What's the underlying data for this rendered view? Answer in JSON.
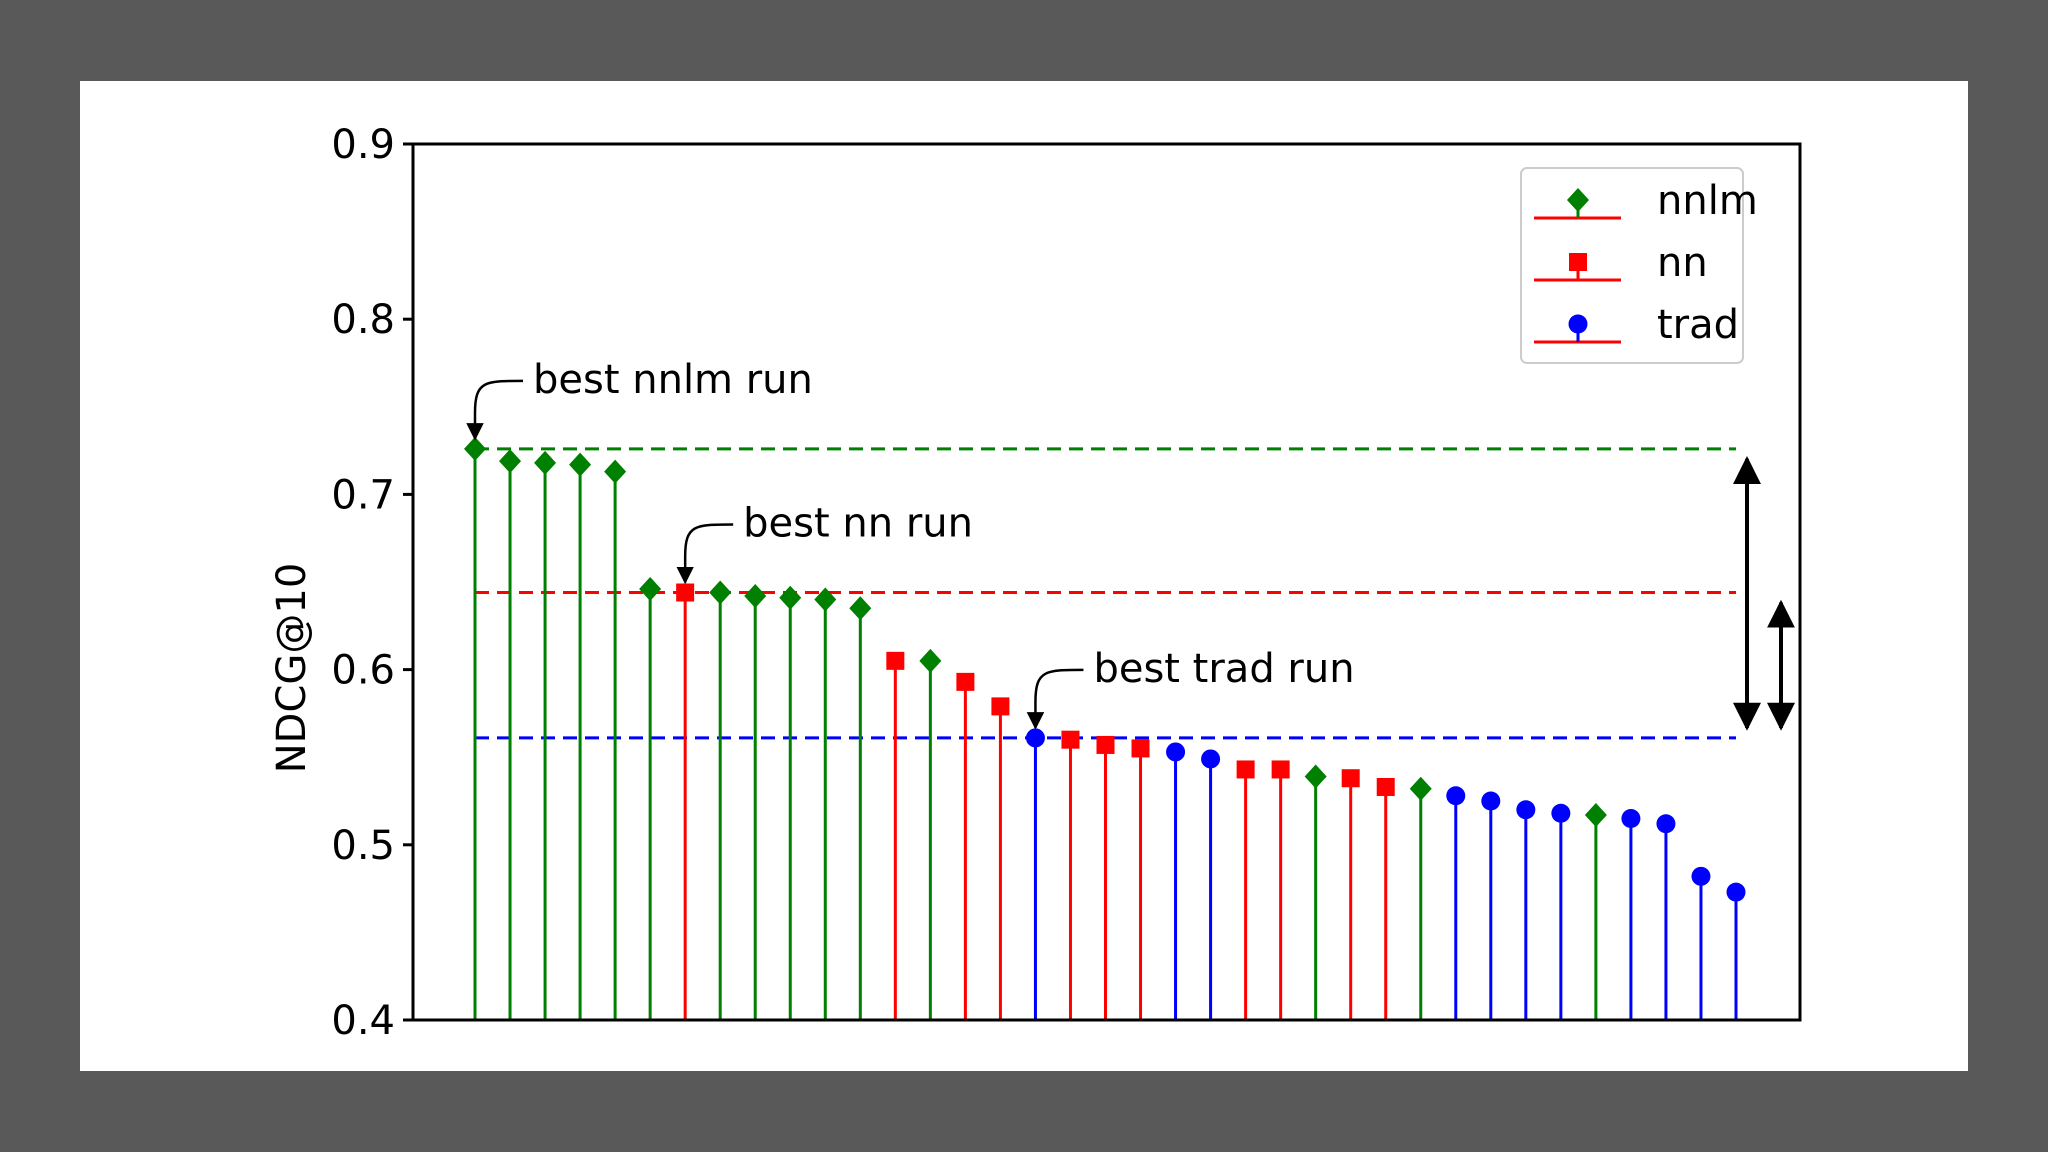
{
  "chart_data": {
    "type": "stem",
    "title": "",
    "xlabel": "",
    "ylabel": "NDCG@10",
    "ylim": [
      0.4,
      0.9
    ],
    "yticks": [
      "0.4",
      "0.5",
      "0.6",
      "0.7",
      "0.8",
      "0.9"
    ],
    "grid": false,
    "legend_position": "top-right",
    "series_styles": {
      "nnlm": {
        "color": "#008000",
        "marker": "diamond"
      },
      "nn": {
        "color": "#ff0000",
        "marker": "square"
      },
      "trad": {
        "color": "#0000ff",
        "marker": "circle"
      }
    },
    "legend": [
      "nnlm",
      "nn",
      "trad"
    ],
    "points": [
      {
        "rank": 1,
        "series": "nnlm",
        "value": 0.726
      },
      {
        "rank": 2,
        "series": "nnlm",
        "value": 0.719
      },
      {
        "rank": 3,
        "series": "nnlm",
        "value": 0.718
      },
      {
        "rank": 4,
        "series": "nnlm",
        "value": 0.717
      },
      {
        "rank": 5,
        "series": "nnlm",
        "value": 0.713
      },
      {
        "rank": 6,
        "series": "nnlm",
        "value": 0.646
      },
      {
        "rank": 7,
        "series": "nn",
        "value": 0.644
      },
      {
        "rank": 8,
        "series": "nnlm",
        "value": 0.644
      },
      {
        "rank": 9,
        "series": "nnlm",
        "value": 0.642
      },
      {
        "rank": 10,
        "series": "nnlm",
        "value": 0.641
      },
      {
        "rank": 11,
        "series": "nnlm",
        "value": 0.64
      },
      {
        "rank": 12,
        "series": "nnlm",
        "value": 0.635
      },
      {
        "rank": 13,
        "series": "nn",
        "value": 0.605
      },
      {
        "rank": 14,
        "series": "nnlm",
        "value": 0.605
      },
      {
        "rank": 15,
        "series": "nn",
        "value": 0.593
      },
      {
        "rank": 16,
        "series": "nn",
        "value": 0.579
      },
      {
        "rank": 17,
        "series": "trad",
        "value": 0.561
      },
      {
        "rank": 18,
        "series": "nn",
        "value": 0.56
      },
      {
        "rank": 19,
        "series": "nn",
        "value": 0.557
      },
      {
        "rank": 20,
        "series": "nn",
        "value": 0.555
      },
      {
        "rank": 21,
        "series": "trad",
        "value": 0.553
      },
      {
        "rank": 22,
        "series": "trad",
        "value": 0.549
      },
      {
        "rank": 23,
        "series": "nn",
        "value": 0.543
      },
      {
        "rank": 24,
        "series": "nn",
        "value": 0.543
      },
      {
        "rank": 25,
        "series": "nnlm",
        "value": 0.539
      },
      {
        "rank": 26,
        "series": "nn",
        "value": 0.538
      },
      {
        "rank": 27,
        "series": "nn",
        "value": 0.533
      },
      {
        "rank": 28,
        "series": "nnlm",
        "value": 0.532
      },
      {
        "rank": 29,
        "series": "trad",
        "value": 0.528
      },
      {
        "rank": 30,
        "series": "trad",
        "value": 0.525
      },
      {
        "rank": 31,
        "series": "trad",
        "value": 0.52
      },
      {
        "rank": 32,
        "series": "trad",
        "value": 0.518
      },
      {
        "rank": 33,
        "series": "nnlm",
        "value": 0.517
      },
      {
        "rank": 34,
        "series": "trad",
        "value": 0.515
      },
      {
        "rank": 35,
        "series": "trad",
        "value": 0.512
      },
      {
        "rank": 36,
        "series": "trad",
        "value": 0.482
      },
      {
        "rank": 37,
        "series": "trad",
        "value": 0.473
      }
    ],
    "reference_lines": [
      {
        "series": "nnlm",
        "value": 0.726
      },
      {
        "series": "nn",
        "value": 0.644
      },
      {
        "series": "trad",
        "value": 0.561
      }
    ],
    "annotations": [
      {
        "text": "best nnlm run",
        "rank": 1,
        "value": 0.726
      },
      {
        "text": "best nn run",
        "rank": 7,
        "value": 0.644
      },
      {
        "text": "best trad run",
        "rank": 17,
        "value": 0.561
      }
    ],
    "gap_arrows": [
      {
        "from": 0.726,
        "to": 0.561
      },
      {
        "from": 0.644,
        "to": 0.561
      }
    ]
  }
}
